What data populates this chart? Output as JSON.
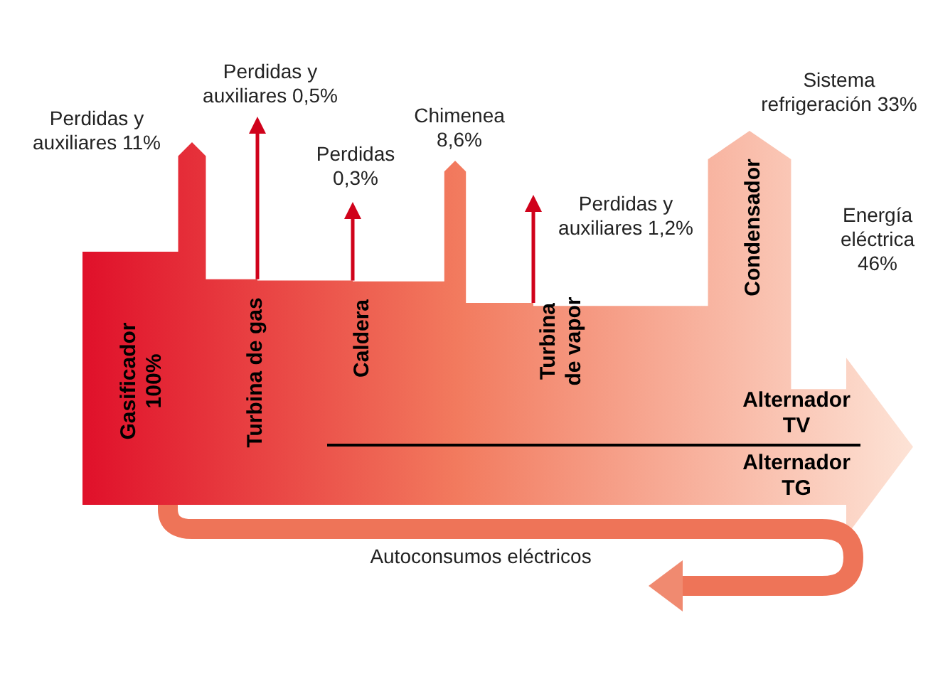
{
  "chart_data": {
    "type": "other",
    "categories": [
      "Perdidas y auxiliares",
      "Perdidas y auxiliares",
      "Perdidas",
      "Chimenea",
      "Perdidas y auxiliares",
      "Sistema refrigeración",
      "Energía eléctrica"
    ],
    "values": [
      11,
      0.5,
      0.3,
      8.6,
      1.2,
      33,
      46
    ],
    "value_labels": [
      "11%",
      "0,5%",
      "0,3%",
      "8,6%",
      "1,2%",
      "33%",
      "46%"
    ],
    "annotations": [
      "Gasificador 100%",
      "Turbina de gas",
      "Caldera",
      "Turbina de vapor",
      "Condensador",
      "Alternador TV",
      "Alternador TG",
      "Autoconsumos eléctricos"
    ]
  }
}
